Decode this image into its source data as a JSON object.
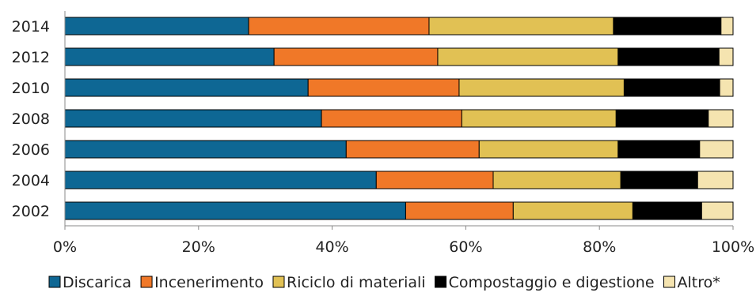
{
  "chart_data": {
    "type": "bar",
    "orientation": "horizontal",
    "stacked": true,
    "normalized": "percent",
    "categories": [
      "2014",
      "2012",
      "2010",
      "2008",
      "2006",
      "2004",
      "2002"
    ],
    "series": [
      {
        "name": "Discarica",
        "color": "#0e6794",
        "values": [
          27.5,
          31.3,
          36.4,
          38.4,
          42.1,
          46.6,
          51.0
        ]
      },
      {
        "name": "Incenerimento",
        "color": "#f07828",
        "values": [
          27.0,
          24.5,
          22.6,
          21.0,
          19.9,
          17.5,
          16.1
        ]
      },
      {
        "name": "Riciclo di materiali",
        "color": "#e1c154",
        "values": [
          27.6,
          27.0,
          24.7,
          23.1,
          20.8,
          19.1,
          17.9
        ]
      },
      {
        "name": "Compostaggio e digestione",
        "color": "#000000",
        "values": [
          16.1,
          15.1,
          14.3,
          13.8,
          12.2,
          11.5,
          10.3
        ]
      },
      {
        "name": "Altro*",
        "color": "#f5e4b0",
        "values": [
          1.8,
          2.1,
          2.0,
          3.7,
          5.0,
          5.3,
          4.7
        ]
      }
    ],
    "xlim": [
      0,
      100
    ],
    "xticks": [
      "0%",
      "20%",
      "40%",
      "60%",
      "80%",
      "100%"
    ],
    "grid": false,
    "legend": "bottom"
  }
}
